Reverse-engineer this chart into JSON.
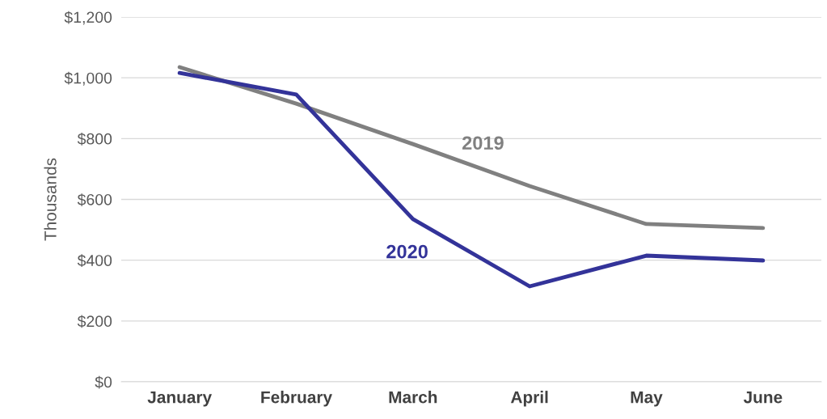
{
  "chart_data": {
    "type": "line",
    "ylabel": "Thousands",
    "categories": [
      "January",
      "February",
      "March",
      "April",
      "May",
      "June"
    ],
    "series": [
      {
        "name": "2019",
        "color": "#808080",
        "values": [
          1035,
          915,
          782,
          644,
          519,
          506
        ]
      },
      {
        "name": "2020",
        "color": "#333399",
        "values": [
          1016,
          945,
          535,
          314,
          415,
          399
        ]
      }
    ],
    "ylim": [
      0,
      1200
    ],
    "yticks": [
      {
        "value": 0,
        "label": "$0"
      },
      {
        "value": 200,
        "label": "$200"
      },
      {
        "value": 400,
        "label": "$400"
      },
      {
        "value": 600,
        "label": "$600"
      },
      {
        "value": 800,
        "label": "$800"
      },
      {
        "value": 1000,
        "label": "$1,000"
      },
      {
        "value": 1200,
        "label": "$1,200"
      }
    ],
    "grid": "y",
    "legend": false,
    "marker": "none",
    "line_style": "solid"
  }
}
